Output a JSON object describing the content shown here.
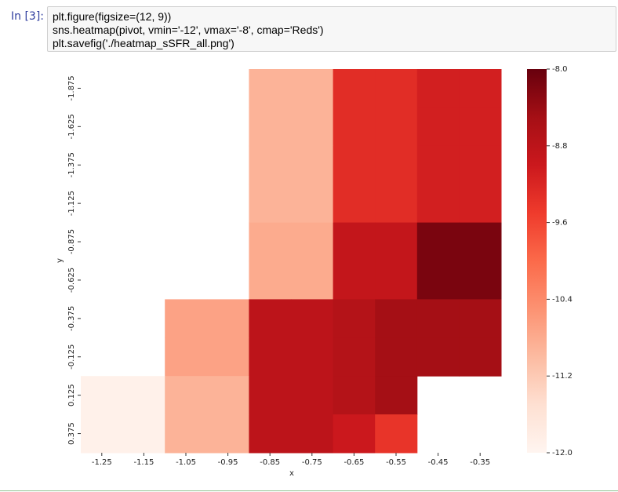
{
  "cell": {
    "prompt": "In [3]:",
    "code": [
      "plt.figure(figsize=(12, 9))",
      "sns.heatmap(pivot, vmin='-12', vmax='-8', cmap='Reds')",
      "plt.savefig('./heatmap_sSFR_all.png')"
    ]
  },
  "chart_data": {
    "type": "heatmap",
    "x_label": "x",
    "y_label": "y",
    "categories": [
      "-1.25",
      "-1.15",
      "-1.05",
      "-0.95",
      "-0.85",
      "-0.75",
      "-0.65",
      "-0.55",
      "-0.45",
      "-0.35"
    ],
    "rows": [
      "-1.875",
      "-1.625",
      "-1.375",
      "-1.125",
      "-0.875",
      "-0.625",
      "-0.375",
      "-0.125",
      "0.125",
      "0.375"
    ],
    "values": [
      [
        null,
        null,
        null,
        null,
        -10.9,
        -10.9,
        -9.3,
        -9.3,
        -9.1,
        -9.1
      ],
      [
        null,
        null,
        null,
        null,
        -10.9,
        -10.9,
        -9.3,
        -9.3,
        -9.1,
        -9.1
      ],
      [
        null,
        null,
        null,
        null,
        -10.9,
        -10.9,
        -9.3,
        -9.3,
        -9.1,
        -9.1
      ],
      [
        null,
        null,
        null,
        null,
        -10.9,
        -10.9,
        -9.3,
        -9.3,
        -9.1,
        -9.1
      ],
      [
        null,
        null,
        null,
        null,
        -10.8,
        -10.8,
        -8.9,
        -8.9,
        -8.15,
        -8.15
      ],
      [
        null,
        null,
        null,
        null,
        -10.8,
        -10.8,
        -8.9,
        -8.9,
        -8.15,
        -8.15
      ],
      [
        null,
        null,
        -10.7,
        -10.7,
        -8.8,
        -8.8,
        -8.7,
        -8.5,
        -8.5,
        -8.5
      ],
      [
        null,
        null,
        -10.7,
        -10.7,
        -8.8,
        -8.8,
        -8.7,
        -8.5,
        -8.5,
        -8.5
      ],
      [
        -11.9,
        -11.9,
        -10.9,
        -10.9,
        -8.8,
        -8.8,
        -8.7,
        -8.5,
        null,
        null
      ],
      [
        -11.9,
        -11.9,
        -10.9,
        -10.9,
        -8.8,
        -8.8,
        -9.0,
        -9.4,
        null,
        null
      ]
    ],
    "colormap": "Reds",
    "clim": [
      -12,
      -8
    ],
    "cticks": [
      {
        "value": -8,
        "label": "-8.0"
      },
      -8.8,
      -9.6,
      -10.4,
      -11.2,
      {
        "value": -12,
        "label": "-12.0"
      }
    ]
  }
}
